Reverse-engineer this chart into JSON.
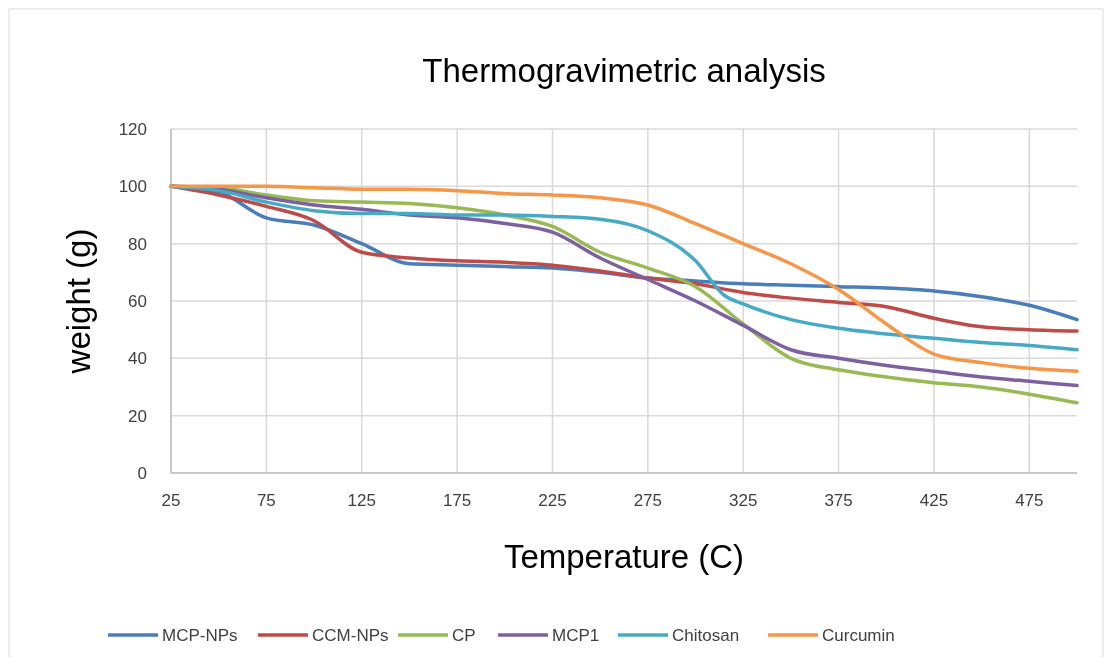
{
  "chart_data": {
    "type": "line",
    "title": "Thermogravimetric analysis",
    "xlabel": "Temperature (C)",
    "ylabel": "weight (g)",
    "xlim": [
      25,
      500
    ],
    "xticks": [
      25,
      75,
      125,
      175,
      225,
      275,
      325,
      375,
      425,
      475
    ],
    "ylim": [
      0,
      120
    ],
    "yticks": [
      0,
      20,
      40,
      60,
      80,
      100,
      120
    ],
    "grid": true,
    "legend": "bottom",
    "marker": "none",
    "line_style": "solid",
    "series": [
      {
        "name": "MCP-NPs",
        "color": "#4a7ebb",
        "x": [
          25,
          50,
          75,
          100,
          125,
          150,
          175,
          200,
          225,
          250,
          275,
          300,
          325,
          350,
          375,
          400,
          425,
          450,
          475,
          500
        ],
        "values": [
          100,
          98,
          89,
          86.5,
          80,
          73,
          72.5,
          72,
          71.5,
          70,
          68,
          67,
          66,
          65.5,
          65,
          64.5,
          63.5,
          61.5,
          58.5,
          53.5
        ]
      },
      {
        "name": "CCM-NPs",
        "color": "#be4b48",
        "x": [
          25,
          50,
          75,
          100,
          125,
          150,
          175,
          200,
          225,
          250,
          275,
          300,
          325,
          350,
          375,
          400,
          425,
          440,
          450,
          475,
          500
        ],
        "values": [
          100,
          97,
          93,
          88,
          77,
          75,
          74,
          73.5,
          72.5,
          70.5,
          68,
          66,
          63,
          61,
          59.5,
          58,
          54,
          52,
          51,
          50,
          49.5
        ]
      },
      {
        "name": "CP",
        "color": "#98b954",
        "x": [
          25,
          50,
          75,
          100,
          125,
          150,
          175,
          200,
          225,
          250,
          275,
          300,
          325,
          350,
          375,
          400,
          425,
          450,
          475,
          500
        ],
        "values": [
          100,
          99.5,
          97,
          95,
          94.5,
          94,
          92.5,
          90,
          86,
          77,
          71.5,
          65,
          52,
          40,
          36,
          33.5,
          31.5,
          30,
          27.5,
          24.5
        ]
      },
      {
        "name": "MCP1",
        "color": "#7d60a0",
        "x": [
          25,
          50,
          75,
          100,
          125,
          150,
          175,
          200,
          225,
          250,
          275,
          300,
          325,
          350,
          375,
          400,
          425,
          450,
          475,
          500
        ],
        "values": [
          100,
          99,
          96,
          93.5,
          92,
          90,
          89,
          87,
          84,
          75,
          67.5,
          60,
          51.5,
          43,
          40,
          37.5,
          35.5,
          33.5,
          32,
          30.5
        ]
      },
      {
        "name": "Chitosan",
        "color": "#46aac5",
        "x": [
          25,
          50,
          75,
          100,
          125,
          150,
          175,
          200,
          225,
          250,
          275,
          300,
          315,
          325,
          350,
          375,
          400,
          425,
          450,
          475,
          500
        ],
        "values": [
          100,
          98.5,
          94.5,
          91.5,
          90.5,
          90.5,
          90,
          90,
          89.5,
          88.5,
          84.5,
          74,
          62,
          59,
          53.5,
          50.5,
          48.5,
          47,
          45.5,
          44.5,
          43
        ]
      },
      {
        "name": "Curcumin",
        "color": "#f79646",
        "x": [
          25,
          50,
          75,
          100,
          125,
          150,
          175,
          200,
          225,
          250,
          275,
          300,
          325,
          350,
          375,
          400,
          425,
          450,
          475,
          500
        ],
        "values": [
          100,
          100,
          100,
          99.5,
          99,
          99,
          98.5,
          97.5,
          97,
          96,
          93.5,
          87,
          80,
          73,
          64,
          52,
          41.5,
          38.5,
          36.5,
          35.5
        ]
      }
    ]
  }
}
